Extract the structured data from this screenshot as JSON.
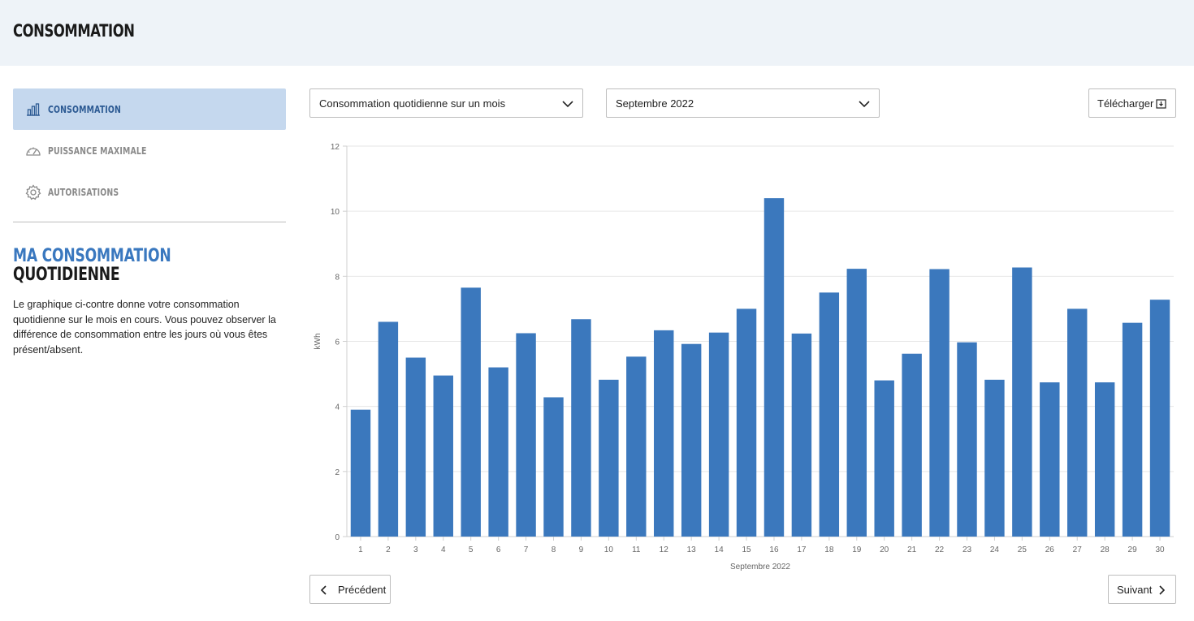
{
  "header": {
    "title": "CONSOMMATION"
  },
  "sidebar": {
    "items": [
      {
        "label": "CONSOMMATION",
        "icon": "bar-chart-icon",
        "active": true
      },
      {
        "label": "PUISSANCE MAXIMALE",
        "icon": "gauge-icon",
        "active": false
      },
      {
        "label": "AUTORISATIONS",
        "icon": "gear-icon",
        "active": false
      }
    ]
  },
  "info": {
    "title_line1": "MA CONSOMMATION",
    "title_line2": "QUOTIDIENNE",
    "text": "Le graphique ci-contre donne votre consommation quotidienne sur le mois en cours. Vous pouvez observer la différence de consommation entre les jours où vous êtes présent/absent."
  },
  "controls": {
    "period_select": "Consommation quotidienne sur un mois",
    "month_select": "Septembre 2022",
    "download_label": "Télécharger",
    "prev_label": "Précédent",
    "next_label": "Suivant"
  },
  "colors": {
    "bar": "#3b78bd",
    "active_bg": "#c5d8ee",
    "header_bg": "#eef3f8"
  },
  "chart_data": {
    "type": "bar",
    "categories": [
      "1",
      "2",
      "3",
      "4",
      "5",
      "6",
      "7",
      "8",
      "9",
      "10",
      "11",
      "12",
      "13",
      "14",
      "15",
      "16",
      "17",
      "18",
      "19",
      "20",
      "21",
      "22",
      "23",
      "24",
      "25",
      "26",
      "27",
      "28",
      "29",
      "30"
    ],
    "values": [
      3.9,
      6.6,
      5.5,
      4.95,
      7.65,
      5.2,
      6.25,
      4.28,
      6.68,
      4.82,
      5.53,
      6.34,
      5.92,
      6.27,
      7.0,
      10.4,
      6.24,
      7.5,
      8.23,
      4.8,
      5.62,
      8.22,
      5.97,
      4.82,
      8.27,
      4.74,
      7.0,
      4.74,
      6.57,
      7.28
    ],
    "xlabel": "Septembre 2022",
    "ylabel": "kWh",
    "ylim": [
      0,
      12
    ],
    "yticks": [
      0,
      2,
      4,
      6,
      8,
      10,
      12
    ],
    "grid": true
  }
}
